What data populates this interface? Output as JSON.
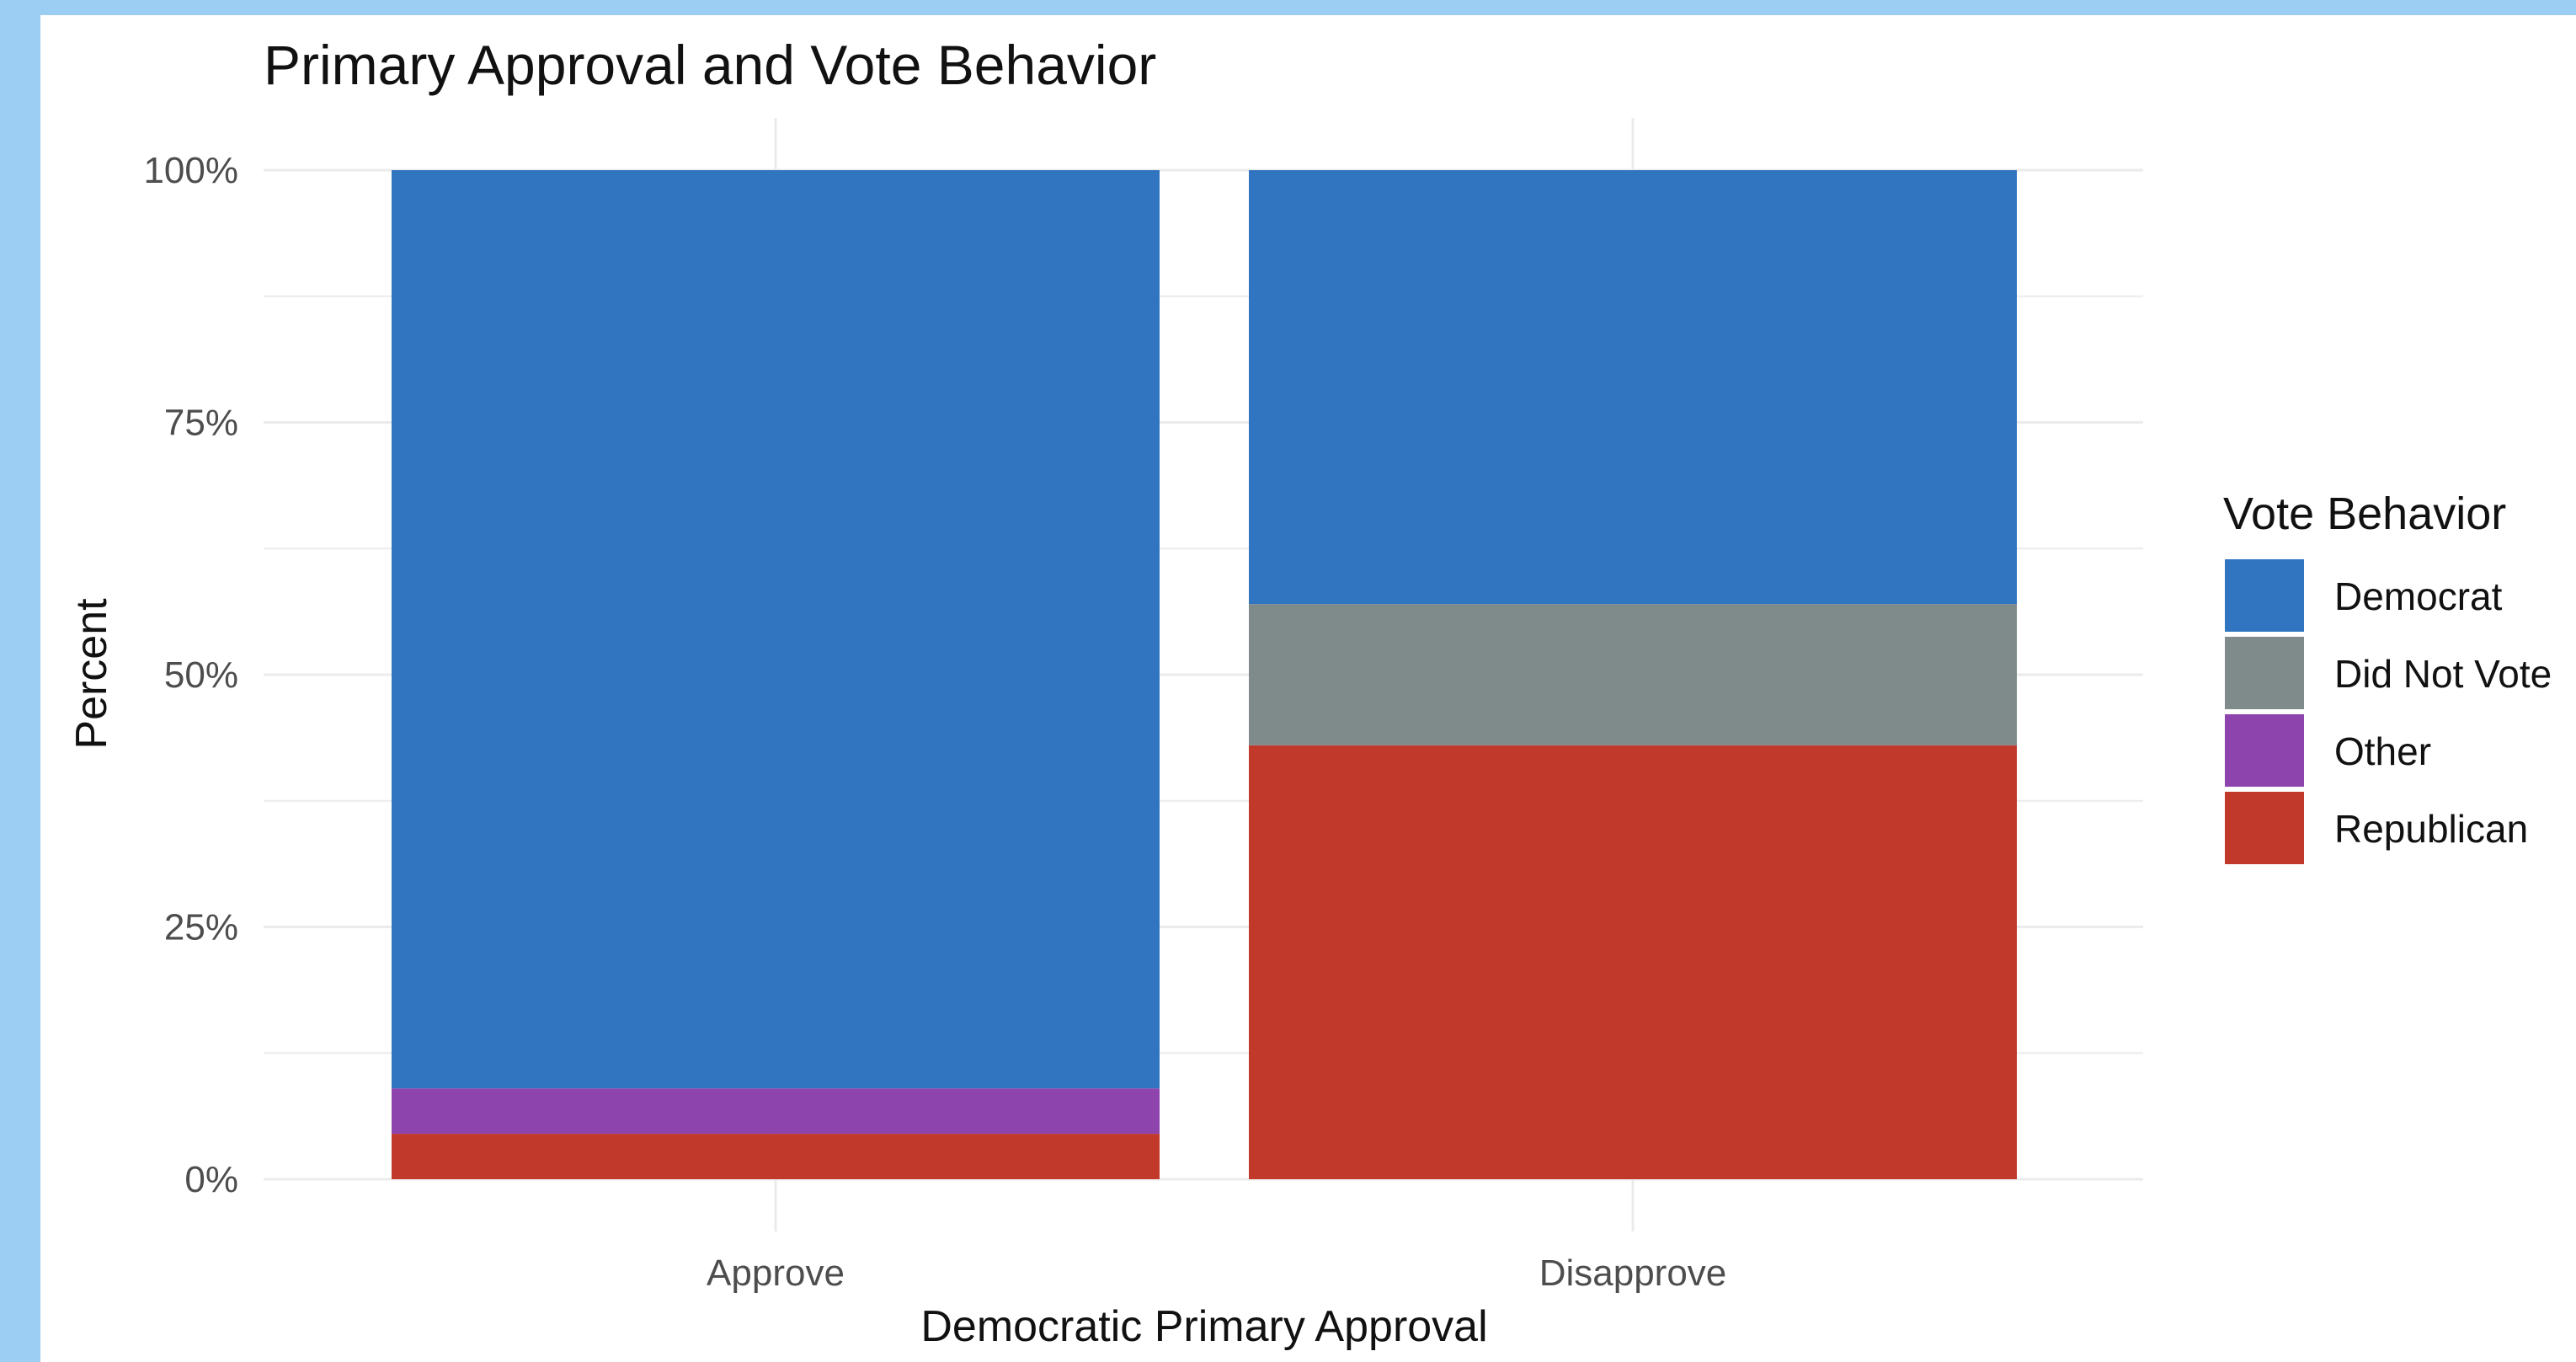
{
  "chart_data": {
    "type": "bar",
    "stacked": true,
    "title": "Primary Approval and Vote Behavior",
    "xlabel": "Democratic Primary Approval",
    "ylabel": "Percent",
    "categories": [
      "Approve",
      "Disapprove"
    ],
    "series": [
      {
        "name": "Democrat",
        "color": "#3175c1",
        "values": [
          91,
          43
        ]
      },
      {
        "name": "Did Not Vote",
        "color": "#7f8b8b",
        "values": [
          0,
          14
        ]
      },
      {
        "name": "Other",
        "color": "#8e44ad",
        "values": [
          4.5,
          0
        ]
      },
      {
        "name": "Republican",
        "color": "#c0392b",
        "values": [
          4.5,
          43
        ]
      }
    ],
    "stack_order_bottom_to_top": [
      "Republican",
      "Other",
      "Did Not Vote",
      "Democrat"
    ],
    "ylim": [
      0,
      100
    ],
    "yticks": [
      0,
      25,
      50,
      75,
      100
    ],
    "ytick_labels": [
      "0%",
      "25%",
      "50%",
      "75%",
      "100%"
    ],
    "grid": true,
    "legend": {
      "title": "Vote Behavior",
      "position": "right",
      "entries": [
        "Democrat",
        "Did Not Vote",
        "Other",
        "Republican"
      ]
    },
    "colors": {
      "gridline": "#ebebeb",
      "background": "#ffffff",
      "outer_frame": "#9ccdf2"
    }
  }
}
